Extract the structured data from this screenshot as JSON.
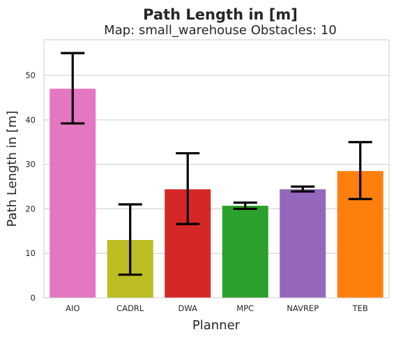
{
  "chart_data": {
    "type": "bar",
    "title": "Path Length in [m]",
    "subtitle": "Map: small_warehouse Obstacles: 10",
    "xlabel": "Planner",
    "ylabel": "Path Length in [m]",
    "categories": [
      "AIO",
      "CADRL",
      "DWA",
      "MPC",
      "NAVREP",
      "TEB"
    ],
    "values": [
      47.0,
      13.0,
      24.4,
      20.7,
      24.4,
      28.5
    ],
    "error_low": [
      39.2,
      5.2,
      16.6,
      20.0,
      23.9,
      22.2
    ],
    "error_high": [
      55.0,
      21.0,
      32.5,
      21.4,
      25.0,
      35.0
    ],
    "colors": [
      "#e377c2",
      "#bcbd22",
      "#d62728",
      "#2ca02c",
      "#9467bd",
      "#ff7f0e"
    ],
    "error_color": "#000000",
    "ylim": [
      0,
      58
    ],
    "yticks": [
      0,
      10,
      20,
      30,
      40,
      50
    ],
    "grid": "horizontal",
    "legend": "none"
  }
}
